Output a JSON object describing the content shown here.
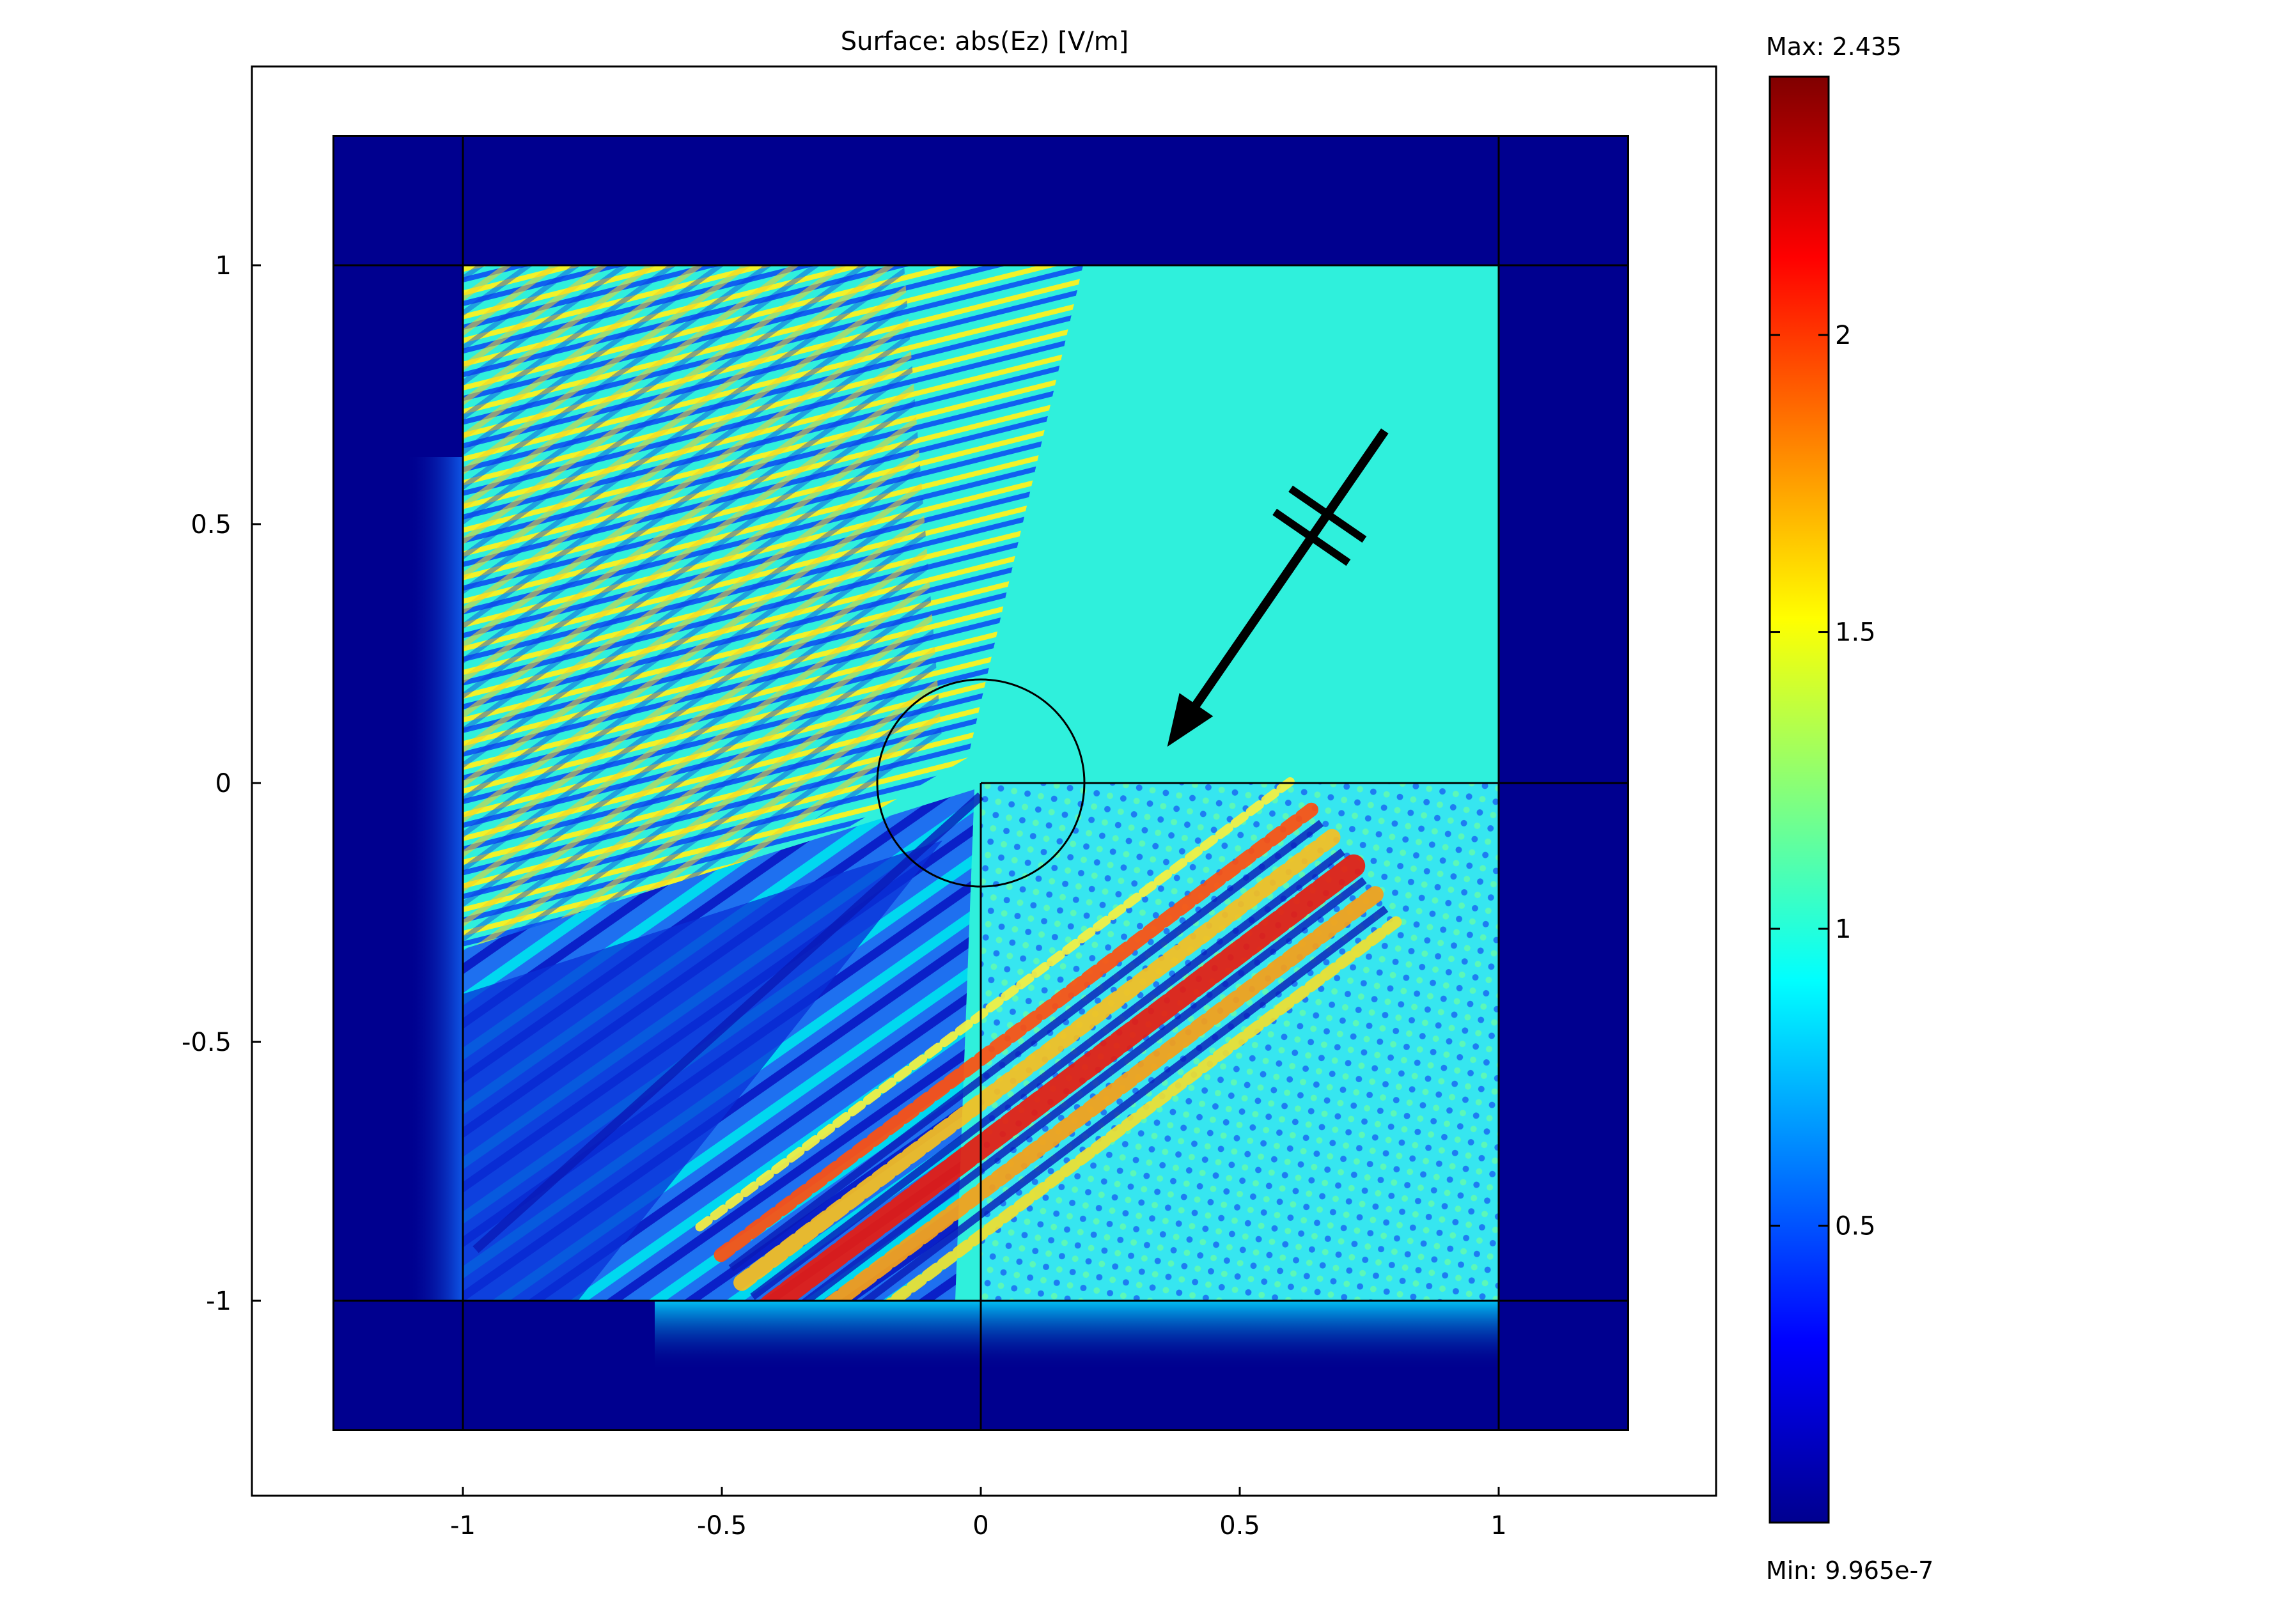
{
  "chart_data": {
    "type": "heatmap",
    "title": "Surface: abs(Ez) [V/m]",
    "xlabel": "",
    "ylabel": "",
    "xlim": [
      -1.5,
      1.4
    ],
    "ylim": [
      -1.38,
      1.38
    ],
    "x_ticks": [
      -1,
      -0.5,
      0,
      0.5,
      1
    ],
    "y_ticks": [
      1,
      0.5,
      0,
      -0.5,
      -1
    ],
    "x_tick_labels": [
      "-1",
      "-0.5",
      "0",
      "0.5",
      "1"
    ],
    "y_tick_labels": [
      "1",
      "0.5",
      "0",
      "-0.5",
      "-1"
    ],
    "colormap": "jet",
    "colorbar": {
      "max_label": "Max: 2.435",
      "min_label": "Min: 9.965e-7",
      "max": 2.435,
      "min": 9.965e-07,
      "ticks": [
        0.5,
        1,
        1.5,
        2
      ],
      "tick_labels": [
        "0.5",
        "1",
        "1.5",
        "2"
      ]
    },
    "domain": {
      "pml_outer": [
        -1.25,
        1.25
      ],
      "inner_square": [
        -1,
        1
      ]
    },
    "wedge": {
      "corner": [
        0,
        0
      ],
      "quadrant": "x>0, y<0"
    },
    "circle": {
      "center": [
        0,
        0
      ],
      "radius": 0.2
    },
    "incident_arrow": {
      "from": [
        0.78,
        0.68
      ],
      "to": [
        0.36,
        0.07
      ]
    },
    "field_peak_value": 2.3,
    "background_value": 1.0
  }
}
